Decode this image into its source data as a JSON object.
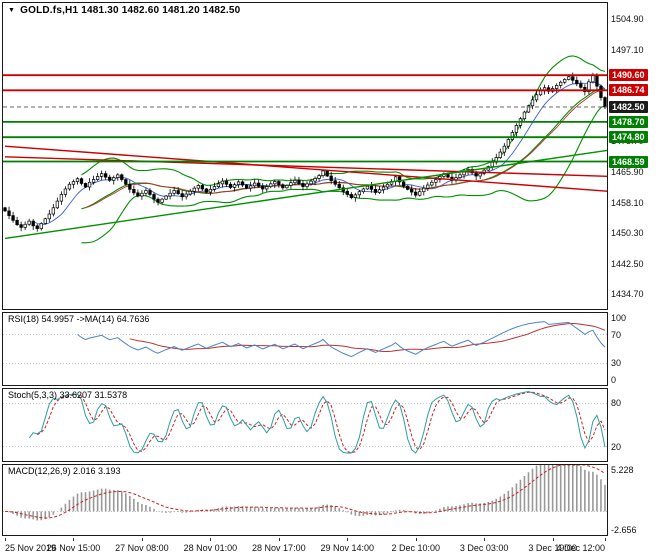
{
  "header": {
    "icon": "▼",
    "symbol": "GOLD.fs,H1",
    "ohlc": "1481.30 1482.60 1481.20 1482.50"
  },
  "chart_data": {
    "type": "candlestick",
    "symbol": "GOLD.fs,H1",
    "price_axis": {
      "min": 1431.0,
      "max": 1509.0,
      "ticks": [
        1504.9,
        1497.1,
        1473.7,
        1465.9,
        1458.1,
        1450.3,
        1442.5,
        1434.7
      ]
    },
    "first_open": 1456.8,
    "closes": [
      1456.0,
      1454.8,
      1453.6,
      1452.5,
      1451.8,
      1452.6,
      1453.4,
      1452.2,
      1451.5,
      1452.8,
      1454.0,
      1455.2,
      1456.8,
      1458.5,
      1460.2,
      1461.6,
      1462.8,
      1463.5,
      1464.2,
      1463.0,
      1462.1,
      1463.3,
      1464.0,
      1464.8,
      1465.5,
      1464.6,
      1463.8,
      1464.5,
      1465.2,
      1464.0,
      1462.8,
      1461.5,
      1460.6,
      1459.8,
      1460.5,
      1461.2,
      1460.2,
      1459.0,
      1458.2,
      1459.0,
      1459.8,
      1460.5,
      1461.2,
      1460.4,
      1459.6,
      1460.3,
      1461.0,
      1461.8,
      1462.5,
      1461.6,
      1460.8,
      1461.5,
      1462.2,
      1462.9,
      1463.6,
      1462.8,
      1462.0,
      1462.7,
      1463.4,
      1462.6,
      1461.8,
      1462.4,
      1463.1,
      1462.3,
      1461.6,
      1462.2,
      1462.9,
      1463.5,
      1462.7,
      1461.9,
      1462.5,
      1463.2,
      1463.8,
      1463.0,
      1462.2,
      1462.9,
      1463.6,
      1464.3,
      1465.0,
      1466.2,
      1464.9,
      1463.7,
      1462.8,
      1461.9,
      1461.0,
      1460.2,
      1459.4,
      1460.1,
      1460.9,
      1461.6,
      1462.3,
      1461.5,
      1460.7,
      1461.4,
      1462.1,
      1462.8,
      1463.5,
      1464.7,
      1463.4,
      1462.3,
      1461.5,
      1460.8,
      1460.0,
      1460.9,
      1461.8,
      1462.6,
      1463.3,
      1464.0,
      1464.8,
      1465.5,
      1464.6,
      1463.8,
      1464.5,
      1465.2,
      1465.9,
      1466.6,
      1465.7,
      1464.9,
      1465.6,
      1466.4,
      1467.3,
      1468.4,
      1469.6,
      1471.0,
      1472.5,
      1474.2,
      1476.0,
      1477.8,
      1479.5,
      1481.2,
      1482.8,
      1484.3,
      1485.6,
      1486.6,
      1487.4,
      1486.5,
      1487.2,
      1488.0,
      1488.8,
      1489.5,
      1490.2,
      1489.3,
      1488.4,
      1487.5,
      1486.4,
      1488.9,
      1490.6,
      1487.8,
      1484.9,
      1482.5
    ],
    "x_labels": [
      {
        "bar": 0,
        "text": "25 Nov 2019"
      },
      {
        "bar": 17,
        "text": "26 Nov 15:00"
      },
      {
        "bar": 34,
        "text": "27 Nov 08:00"
      },
      {
        "bar": 51,
        "text": "28 Nov 01:00"
      },
      {
        "bar": 68,
        "text": "28 Nov 17:00"
      },
      {
        "bar": 85,
        "text": "29 Nov 14:00"
      },
      {
        "bar": 102,
        "text": "2 Dec 10:00"
      },
      {
        "bar": 119,
        "text": "3 Dec 03:00"
      },
      {
        "bar": 136,
        "text": "3 Dec 19:00"
      },
      {
        "bar": 149,
        "text": "4 Dec 12:00"
      }
    ],
    "levels": [
      {
        "price": 1490.6,
        "label": "1490.60",
        "color": "#cc0000"
      },
      {
        "price": 1486.74,
        "label": "1486.74",
        "color": "#cc0000"
      },
      {
        "price": 1478.7,
        "label": "1478.70",
        "color": "#008000"
      },
      {
        "price": 1474.8,
        "label": "1474.80",
        "color": "#008000"
      },
      {
        "price": 1468.59,
        "label": "1468.59",
        "color": "#008000"
      }
    ],
    "current_price": {
      "value": 1482.5,
      "label": "1482.50",
      "badge_color": "#1a1a1a",
      "line_color": "#666666"
    },
    "trendlines": [
      {
        "b1": 0,
        "p1": 1472.5,
        "b2": 150,
        "p2": 1461.0,
        "color": "#cc0000"
      },
      {
        "b1": 0,
        "p1": 1469.8,
        "b2": 150,
        "p2": 1464.8,
        "color": "#cc0000"
      },
      {
        "b1": 0,
        "p1": 1449.0,
        "b2": 150,
        "p2": 1471.5,
        "color": "#009000"
      }
    ],
    "bollinger": {
      "period": 20,
      "dev": 2,
      "color": "#009000"
    },
    "ma_fast": {
      "period": 8,
      "color": "#3b5bd6"
    },
    "ma_slow": {
      "period": 21,
      "color": "#c03030"
    },
    "indicators": {
      "rsi": {
        "header": "RSI(18) 54.9957 ->MA(14) 64.7636",
        "period": 18,
        "ma_period": 14,
        "scale": [
          0,
          100
        ],
        "ticks": [
          100,
          70,
          30,
          0
        ],
        "levels": [
          70,
          30
        ],
        "line_color": "#4a86c8",
        "ma_color": "#c03030"
      },
      "stoch": {
        "header": "Stoch(5,3,3) 33.6207 31.5378",
        "k": 5,
        "slowing": 3,
        "d": 3,
        "scale": [
          0,
          100
        ],
        "ticks": [
          80,
          20
        ],
        "levels": [
          80,
          20
        ],
        "main_color": "#2e9e9e",
        "signal_color": "#cc2222"
      },
      "macd": {
        "header": "MACD(12,26,9) 2.016 3.193",
        "fast": 12,
        "slow": 26,
        "signal": 9,
        "scale": [
          -2.656,
          5.228
        ],
        "ticks": [
          5.228,
          -2.656
        ],
        "hist_color": "#999999",
        "signal_color": "#cc2222"
      }
    }
  }
}
